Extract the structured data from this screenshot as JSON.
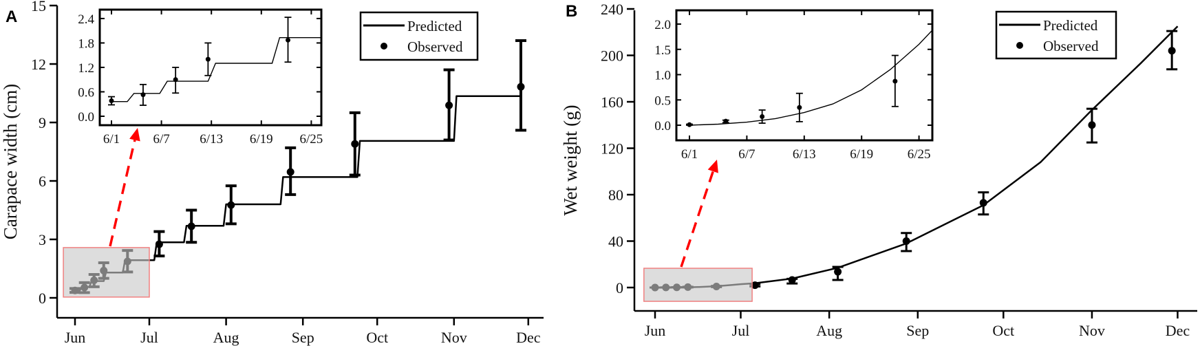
{
  "chart_data": [
    {
      "panel_label": "A",
      "type": "line",
      "title": "",
      "xlabel": "",
      "ylabel": "Carapace width (cm)",
      "ylim": [
        -1,
        15
      ],
      "y_ticks": [
        0,
        3,
        6,
        9,
        12,
        15
      ],
      "y_tick_labels": [
        "0",
        "3",
        "6",
        "9",
        "12",
        "15"
      ],
      "x_ticks_days_from_jun1": [
        0,
        30,
        61,
        92,
        122,
        153,
        183
      ],
      "x_tick_labels": [
        "Jun",
        "Jul",
        "Aug",
        "Sep",
        "Oct",
        "Nov",
        "Dec"
      ],
      "grid": false,
      "legend": {
        "position": "top-right",
        "entries": [
          "Predicted",
          "Observed"
        ]
      },
      "colors": {
        "line": "#000000",
        "highlight_fill": "#c8c8c8",
        "highlight_stroke": "#f08080",
        "arrow": "#ff0000"
      },
      "predicted": {
        "days": [
          0,
          1.9,
          2.7,
          5.8,
          6.7,
          11.6,
          12.5,
          19.3,
          20.2,
          32,
          33,
          44,
          45,
          60,
          61,
          83,
          84,
          114,
          115,
          153,
          154,
          180
        ],
        "values": [
          0.36,
          0.36,
          0.56,
          0.56,
          0.86,
          0.86,
          1.3,
          1.3,
          1.93,
          1.93,
          2.85,
          2.85,
          3.7,
          3.7,
          4.8,
          4.8,
          6.2,
          6.2,
          8.05,
          8.05,
          10.35,
          10.35
        ]
      },
      "observed": {
        "days": [
          0,
          3.8,
          7.7,
          11.6,
          21.2,
          34,
          47,
          63,
          87,
          113,
          151,
          180
        ],
        "values": [
          0.38,
          0.53,
          0.9,
          1.4,
          1.87,
          2.75,
          3.67,
          4.76,
          6.46,
          7.9,
          9.88,
          10.83
        ],
        "lower": [
          0.28,
          0.27,
          0.57,
          1.0,
          1.33,
          2.15,
          2.85,
          3.8,
          5.3,
          6.3,
          8.1,
          8.6
        ],
        "upper": [
          0.48,
          0.78,
          1.2,
          1.8,
          2.43,
          3.4,
          4.5,
          5.75,
          7.7,
          9.5,
          11.7,
          13.2
        ]
      },
      "highlight_region": {
        "days": [
          -4.7,
          30
        ],
        "values": [
          0.04,
          2.58
        ]
      },
      "inset": {
        "xlim_days": [
          -1.4,
          25.2
        ],
        "ylim": [
          -0.22,
          2.62
        ],
        "y_ticks": [
          0,
          0.6,
          1.2,
          1.8,
          2.4
        ],
        "y_tick_labels": [
          "0.0",
          "0.6",
          "1.2",
          "1.8",
          "2.4"
        ],
        "x_ticks_days": [
          0,
          6,
          12,
          18,
          24
        ],
        "x_tick_labels": [
          "6/1",
          "6/7",
          "6/13",
          "6/19",
          "6/25"
        ],
        "observed_count": 5
      }
    },
    {
      "panel_label": "B",
      "type": "line",
      "title": "",
      "xlabel": "",
      "ylabel": "Wet weight (g)",
      "ylim": [
        -20,
        240
      ],
      "y_ticks": [
        0,
        40,
        80,
        120,
        160,
        200,
        240
      ],
      "y_tick_labels": [
        "0",
        "40",
        "80",
        "120",
        "160",
        "200",
        "240"
      ],
      "x_ticks_days_from_jun1": [
        0,
        30,
        61,
        92,
        122,
        153,
        183
      ],
      "x_tick_labels": [
        "Jun",
        "Jul",
        "Aug",
        "Sep",
        "Oct",
        "Nov",
        "Dec"
      ],
      "grid": false,
      "legend": {
        "position": "top-right",
        "entries": [
          "Predicted",
          "Observed"
        ]
      },
      "colors": {
        "line": "#000000",
        "highlight_fill": "#c8c8c8",
        "highlight_stroke": "#f08080",
        "arrow": "#ff0000"
      },
      "predicted": {
        "days": [
          0,
          3,
          6,
          9,
          12,
          15,
          18,
          21,
          24,
          27,
          30,
          35,
          48,
          64,
          88,
          115,
          135,
          153,
          170,
          183
        ],
        "values": [
          0,
          0.02,
          0.06,
          0.13,
          0.25,
          0.42,
          0.7,
          1.1,
          1.6,
          2.2,
          2.9,
          3.7,
          7.7,
          17,
          38,
          71,
          108,
          153,
          193,
          225
        ]
      },
      "observed": {
        "days": [
          0,
          3.8,
          7.6,
          11.5,
          21.5,
          35,
          48,
          64,
          88,
          115,
          153,
          181
        ],
        "values": [
          0.01,
          0.08,
          0.17,
          0.35,
          0.87,
          2,
          6.5,
          13.6,
          40,
          73,
          140,
          204
        ],
        "lower": [
          0,
          0.05,
          0.04,
          0.07,
          0.37,
          1,
          3.5,
          6.5,
          31.4,
          63,
          125,
          188
        ],
        "upper": [
          0.02,
          0.1,
          0.3,
          0.63,
          1.38,
          3,
          7.5,
          17.8,
          47,
          82,
          154,
          221
        ]
      },
      "highlight_region": {
        "days": [
          -3.9,
          34
        ],
        "values": [
          -11.9,
          16.6
        ]
      },
      "inset": {
        "xlim_days": [
          -1.4,
          25.4
        ],
        "ylim": [
          -0.3,
          2.27
        ],
        "y_ticks": [
          0,
          0.5,
          1.0,
          1.5,
          2.0
        ],
        "y_tick_labels": [
          "0.0",
          "0.5",
          "1.0",
          "1.5",
          "2.0"
        ],
        "x_ticks_days": [
          0,
          6,
          12,
          18,
          24
        ],
        "x_tick_labels": [
          "6/1",
          "6/7",
          "6/13",
          "6/19",
          "6/25"
        ],
        "observed_count": 5
      }
    }
  ]
}
